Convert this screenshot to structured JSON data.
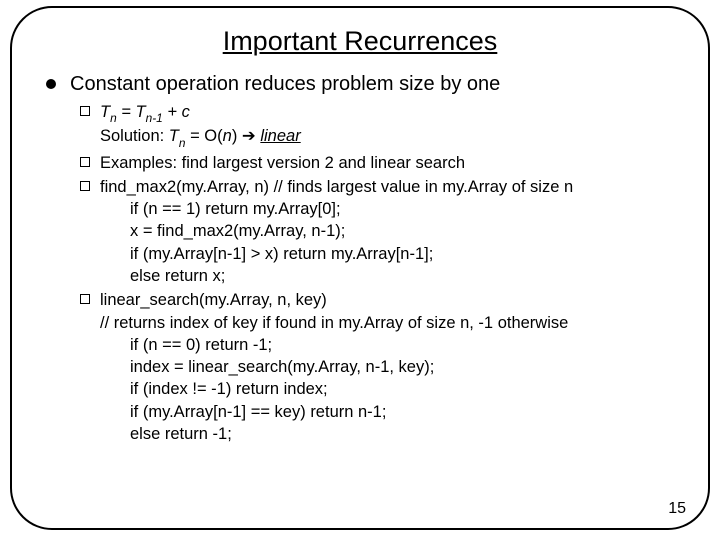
{
  "title": "Important Recurrences",
  "l1": "Constant operation reduces problem size by one",
  "items": [
    {
      "line1_pre": "T",
      "line1_sub1": "n",
      "line1_mid": " = T",
      "line1_sub2": "n-1",
      "line1_post": " + c",
      "sol_pre": "Solution: ",
      "sol_t": "T",
      "sol_sub": "n",
      "sol_mid": " = O(",
      "sol_n": "n",
      "sol_close": ") ",
      "sol_arrow": "➔",
      "sol_sp": " ",
      "sol_linear": "linear"
    },
    {
      "text": "Examples: find largest version 2 and linear search"
    },
    {
      "head": "find_max2(my.Array, n) // finds largest value in my.Array of size n",
      "c1": "if (n == 1) return my.Array[0];",
      "c2": "x = find_max2(my.Array, n-1);",
      "c3": "if (my.Array[n-1] > x) return my.Array[n-1];",
      "c4": "else return x;"
    },
    {
      "head1": "linear_search(my.Array, n, key)",
      "head2": "// returns index of key if found in my.Array of size n, -1 otherwise",
      "c1": "if (n == 0) return -1;",
      "c2": "index = linear_search(my.Array, n-1, key);",
      "c3": "if (index != -1) return index;",
      "c4": "if (my.Array[n-1] == key) return n-1;",
      "c5": "else return -1;"
    }
  ],
  "pageNumber": "15",
  "colors": {
    "text": "#000000",
    "bg": "#ffffff",
    "border": "#000000"
  }
}
